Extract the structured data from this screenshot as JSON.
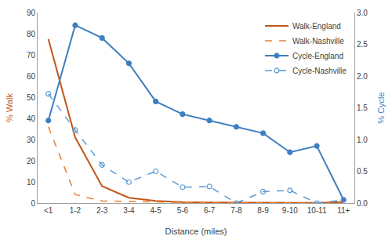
{
  "chart_data": {
    "type": "line",
    "x_label": "Distance (miles)",
    "y_label": "% Walk",
    "y2_label": "% Cycle",
    "categories": [
      "<1",
      "1-2",
      "2-3",
      "3-4",
      "4-5",
      "5-6",
      "6-7",
      "7-8",
      "8-9",
      "9-10",
      "10-11",
      "11+"
    ],
    "ylim": [
      0,
      90
    ],
    "yticks": [
      0,
      10,
      20,
      30,
      40,
      50,
      60,
      70,
      80,
      90
    ],
    "y2lim": [
      0,
      3
    ],
    "y2ticks": [
      {
        "value": 0,
        "label": "0.0"
      },
      0.5,
      {
        "value": 1,
        "label": "1.0"
      },
      1.5,
      {
        "value": 2,
        "label": "2.0"
      },
      2.5,
      {
        "value": 3,
        "label": "3.0"
      }
    ],
    "grid": false,
    "legend": "upper right",
    "series": [
      {
        "name": "Walk-England",
        "color": "#c0571a",
        "line_style": "solid",
        "marker": "none",
        "values": [
          77.5,
          31,
          8,
          2.5,
          1,
          0.5,
          0.3,
          0.2,
          0.1,
          0.1,
          0.1,
          0.5
        ]
      },
      {
        "name": "Walk-Nashville",
        "color": "#ed7d31",
        "line_style": "dash",
        "marker": "none",
        "values": [
          36,
          4,
          1,
          0.7,
          0.5,
          0.3,
          0.2,
          0.1,
          0.1,
          0.1,
          0,
          1
        ]
      },
      {
        "name": "Cycle-England",
        "color": "#3f7fbf",
        "line_style": "solid",
        "marker": "circle",
        "axis": "y2",
        "values": [
          1.3,
          2.8,
          2.6,
          2.2,
          1.6,
          1.4,
          1.3,
          1.2,
          1.1,
          0.8,
          0.9,
          0.05
        ]
      },
      {
        "name": "Cycle-Nashville",
        "color": "#5b9bd5",
        "line_style": "dash",
        "marker": "circle-open",
        "axis": "y2",
        "values": [
          1.72,
          1.15,
          0.6,
          0.33,
          0.5,
          0.25,
          0.26,
          0,
          0.18,
          0.2,
          0,
          0.05
        ]
      }
    ]
  }
}
